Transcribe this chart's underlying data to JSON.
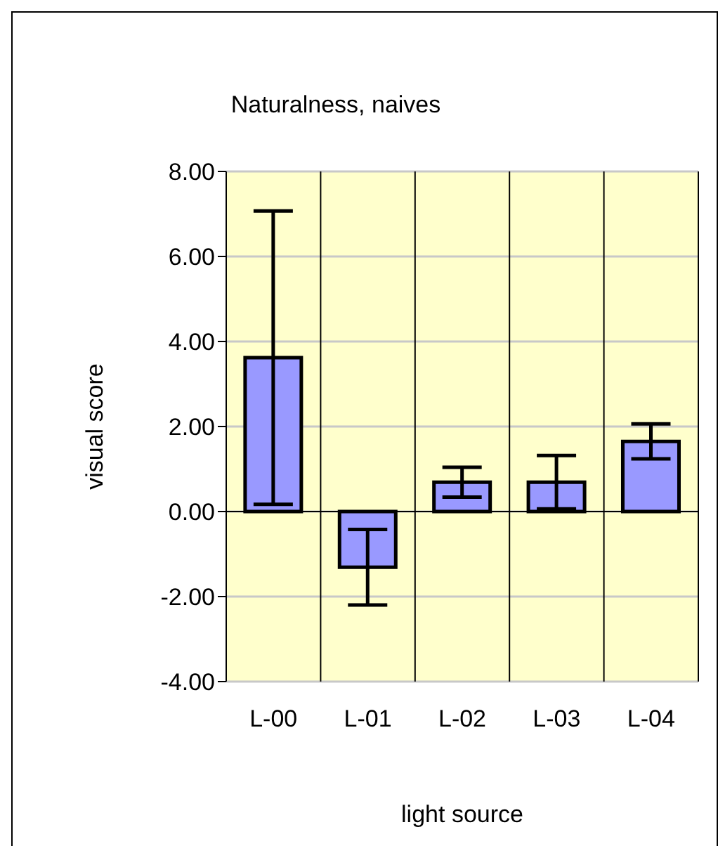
{
  "chart_data": {
    "type": "bar",
    "title": "Naturalness, naives",
    "xlabel": "light source",
    "ylabel": "visual score",
    "categories": [
      "L-00",
      "L-01",
      "L-02",
      "L-03",
      "L-04"
    ],
    "values": [
      3.62,
      -1.31,
      0.69,
      0.69,
      1.65
    ],
    "errors": [
      3.45,
      0.89,
      0.35,
      0.63,
      0.41
    ],
    "color": "#9999ff",
    "ylim": [
      -4,
      8
    ],
    "yticks": [
      {
        "value": -4,
        "label": "-4.00"
      },
      {
        "value": -2,
        "label": "-2.00"
      },
      {
        "value": 0,
        "label": "0.00"
      },
      {
        "value": 2,
        "label": "2.00"
      },
      {
        "value": 4,
        "label": "4.00"
      },
      {
        "value": 6,
        "label": "6.00"
      },
      {
        "value": 8,
        "label": "8.00"
      }
    ],
    "grid": true
  }
}
